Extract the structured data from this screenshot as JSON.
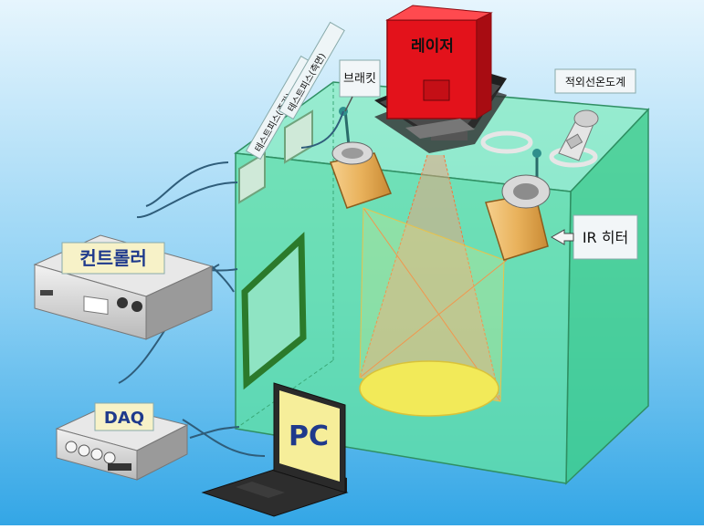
{
  "labels": {
    "laser": "레이저",
    "bracket": "브래킷",
    "pyrometer": "적외선온도계",
    "ir_heater": "IR 히터",
    "testpiece_middle": "테스트피스(중간)",
    "testpiece_side": "테스트피스(측면)",
    "controller": "컨트롤러",
    "daq": "DAQ",
    "pc": "PC"
  },
  "colors": {
    "background_top": "#e6f5fd",
    "background_bottom": "#33a6e6",
    "chamber": "#5fe0a6",
    "laser": "#e3121b",
    "heater": "#e9b25c",
    "label_box": "#f7f2c8",
    "label_text": "#1f3a8c"
  }
}
